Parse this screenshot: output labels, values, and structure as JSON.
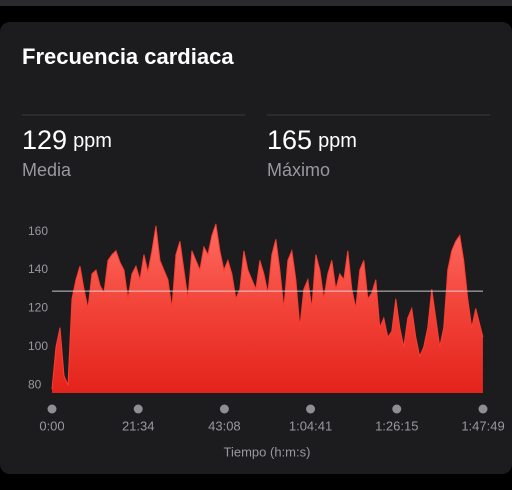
{
  "header": {
    "title": "Frecuencia cardiaca"
  },
  "stats": [
    {
      "value": 129,
      "unit": "ppm",
      "label": "Media"
    },
    {
      "value": 165,
      "unit": "ppm",
      "label": "Máximo"
    }
  ],
  "chart_data": {
    "type": "area",
    "color": "#ff3b30",
    "average": 129,
    "x_label": "Tiempo (h:m:s)",
    "xlim": [
      0,
      107.82
    ],
    "xticks": [
      {
        "value": 0,
        "label": "0:00"
      },
      {
        "value": 21.57,
        "label": "21:34"
      },
      {
        "value": 43.13,
        "label": "43:08"
      },
      {
        "value": 64.68,
        "label": "1:04:41"
      },
      {
        "value": 86.25,
        "label": "1:26:15"
      },
      {
        "value": 107.82,
        "label": "1:47:49"
      }
    ],
    "ylim": [
      76,
      165
    ],
    "yticks": [
      80,
      100,
      120,
      140,
      160
    ],
    "x": [
      0,
      1,
      2,
      3,
      4,
      5,
      6,
      7,
      8,
      9,
      10,
      11,
      12,
      13,
      14,
      15,
      16,
      17,
      18,
      19,
      20,
      21,
      22,
      23,
      24,
      25,
      26,
      27,
      28,
      29,
      30,
      31,
      32,
      33,
      34,
      35,
      36,
      37,
      38,
      39,
      40,
      41,
      42,
      43,
      44,
      45,
      46,
      47,
      48,
      49,
      50,
      51,
      52,
      53,
      54,
      55,
      56,
      57,
      58,
      59,
      60,
      61,
      62,
      63,
      64,
      65,
      66,
      67,
      68,
      69,
      70,
      71,
      72,
      73,
      74,
      75,
      76,
      77,
      78,
      79,
      80,
      81,
      82,
      83,
      84,
      85,
      86,
      87,
      88,
      89,
      90,
      91,
      92,
      93,
      94,
      95,
      96,
      97,
      98,
      99,
      100,
      101,
      102,
      103,
      104,
      105,
      106,
      107.8
    ],
    "values": [
      78,
      100,
      110,
      85,
      80,
      125,
      135,
      142,
      130,
      120,
      138,
      140,
      132,
      128,
      145,
      148,
      150,
      144,
      140,
      125,
      138,
      142,
      135,
      148,
      139,
      150,
      163,
      145,
      140,
      135,
      120,
      148,
      155,
      140,
      125,
      150,
      145,
      140,
      152,
      148,
      158,
      164,
      150,
      140,
      145,
      138,
      125,
      130,
      150,
      140,
      135,
      130,
      145,
      138,
      128,
      148,
      156,
      140,
      120,
      145,
      150,
      135,
      110,
      130,
      135,
      120,
      148,
      140,
      125,
      138,
      145,
      130,
      138,
      135,
      150,
      130,
      120,
      140,
      145,
      125,
      128,
      135,
      110,
      115,
      105,
      108,
      125,
      110,
      100,
      115,
      120,
      105,
      95,
      100,
      110,
      130,
      115,
      100,
      110,
      140,
      150,
      155,
      158,
      145,
      125,
      110,
      120,
      105
    ]
  }
}
